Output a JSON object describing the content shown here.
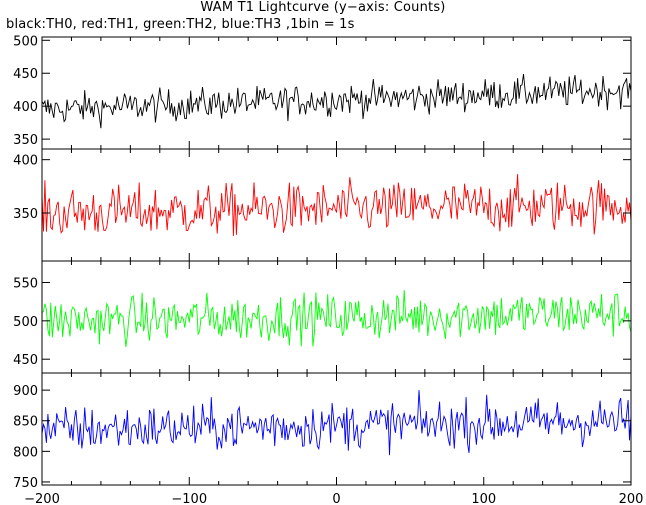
{
  "title": "WAM T1 Lightcurve (y−axis: Counts)",
  "subtitle": "black:TH0, red:TH1, green:TH2, blue:TH3 ,1bin = 1s",
  "chart_data": {
    "type": "line",
    "xlim": [
      -200,
      200
    ],
    "x_ticks": [
      -200,
      -100,
      0,
      100,
      200
    ],
    "x_tick_labels": [
      "−200",
      "−100",
      "0",
      "100",
      "200"
    ],
    "bin_seconds": 1,
    "panels": [
      {
        "name": "TH0",
        "color": "#000000",
        "ylim": [
          335,
          505
        ],
        "y_ticks": [
          350,
          400,
          450,
          500
        ],
        "mean": 395,
        "trend_end": 425,
        "noise": 22
      },
      {
        "name": "TH1",
        "color": "#ff0000",
        "ylim": [
          305,
          410
        ],
        "y_ticks": [
          350,
          400
        ],
        "mean": 350,
        "trend_end": 358,
        "noise": 22
      },
      {
        "name": "TH2",
        "color": "#00ff00",
        "ylim": [
          432,
          578
        ],
        "y_ticks": [
          450,
          500,
          550
        ],
        "mean": 500,
        "trend_end": 510,
        "noise": 28
      },
      {
        "name": "TH3",
        "color": "#0000ff",
        "ylim": [
          745,
          928
        ],
        "y_ticks": [
          750,
          800,
          850,
          900
        ],
        "mean": 835,
        "trend_end": 850,
        "noise": 35
      }
    ]
  }
}
